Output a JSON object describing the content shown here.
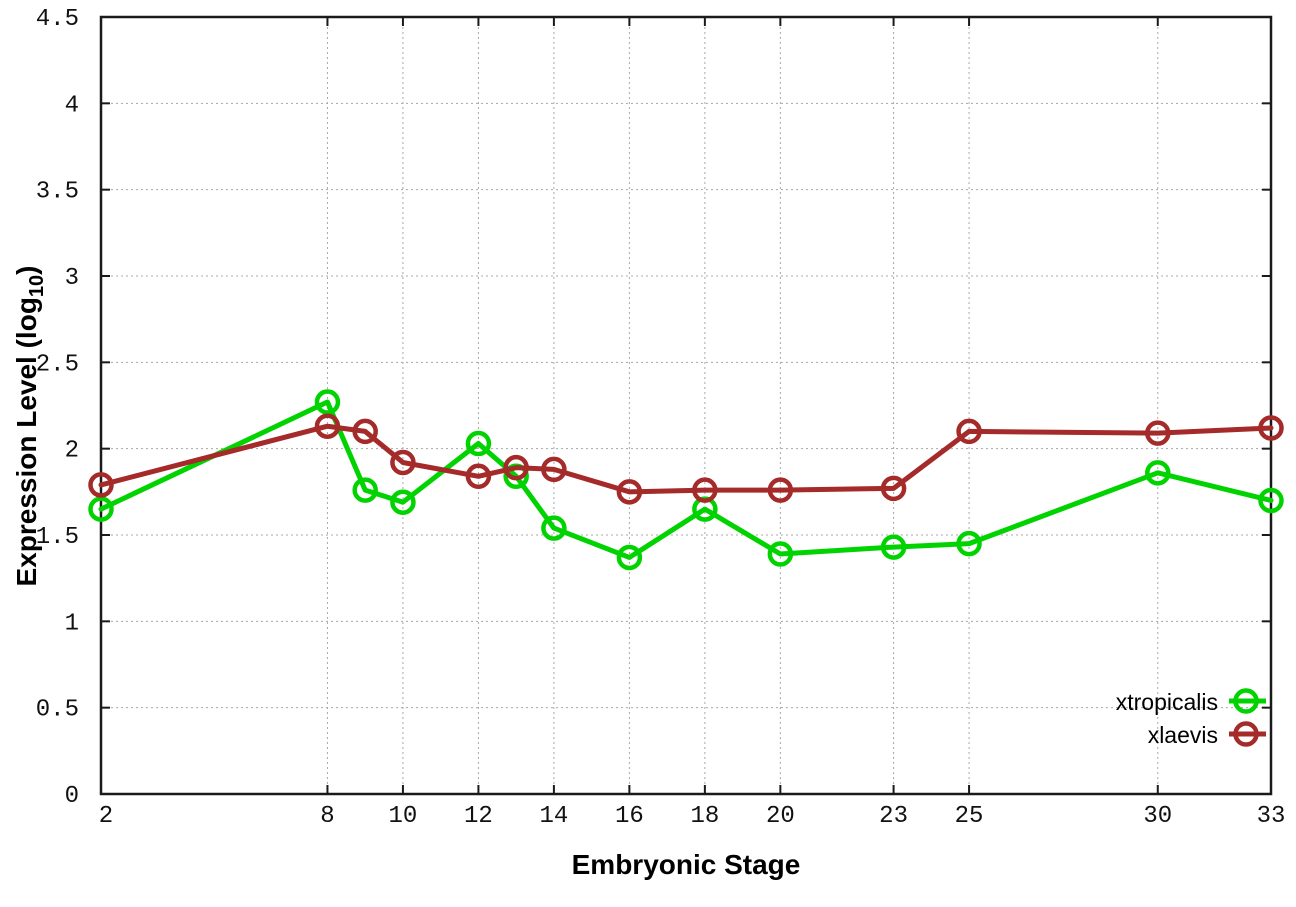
{
  "chart_data": {
    "type": "line",
    "title": "",
    "xlabel": "Embryonic Stage",
    "ylabel": "Expression Level (log10)",
    "ylabel_parts": {
      "main": "Expression Level (log",
      "sub": "10",
      "suffix": ")"
    },
    "x": [
      2,
      8,
      9,
      10,
      12,
      13,
      14,
      16,
      18,
      20,
      23,
      25,
      30,
      33
    ],
    "series": [
      {
        "name": "xtropicalis",
        "color": "#00D300",
        "values": [
          1.65,
          2.27,
          1.76,
          1.69,
          2.03,
          1.84,
          1.54,
          1.37,
          1.65,
          1.39,
          1.43,
          1.45,
          1.86,
          1.7
        ]
      },
      {
        "name": "xlaevis",
        "color": "#A52A2A",
        "values": [
          1.79,
          2.13,
          2.1,
          1.92,
          1.84,
          1.89,
          1.88,
          1.75,
          1.76,
          1.76,
          1.77,
          2.1,
          2.09,
          2.12
        ]
      }
    ],
    "x_tick_values": [
      2,
      8,
      10,
      12,
      14,
      16,
      18,
      20,
      23,
      25,
      30,
      33
    ],
    "x_tick_labels": [
      "2",
      "8",
      "10",
      "12",
      "14",
      "16",
      "18",
      "20",
      "23",
      "25",
      "30",
      "33"
    ],
    "y_tick_values": [
      0,
      0.5,
      1,
      1.5,
      2,
      2.5,
      3,
      3.5,
      4,
      4.5
    ],
    "y_tick_labels": [
      "0",
      "0.5",
      "1",
      "1.5",
      "2",
      "2.5",
      "3",
      "3.5",
      "4",
      "4.5"
    ],
    "xlim": [
      2,
      33
    ],
    "ylim": [
      0,
      4.5
    ],
    "grid": true,
    "legend_position": "bottom-right",
    "marker": "open-circle"
  },
  "style_colors": {
    "border": "#1a1a1a",
    "grid": "#a8a8a8",
    "background": "#ffffff"
  }
}
